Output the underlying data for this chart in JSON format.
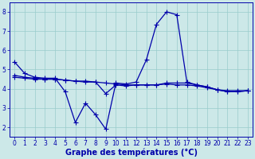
{
  "xlabel": "Graphe des températures (°C)",
  "background_color": "#cce8e8",
  "grid_color": "#99cccc",
  "line_color": "#0000aa",
  "xlim": [
    -0.5,
    23.5
  ],
  "ylim": [
    1.5,
    8.5
  ],
  "yticks": [
    2,
    3,
    4,
    5,
    6,
    7,
    8
  ],
  "xticks": [
    0,
    1,
    2,
    3,
    4,
    5,
    6,
    7,
    8,
    9,
    10,
    11,
    12,
    13,
    14,
    15,
    16,
    17,
    18,
    19,
    20,
    21,
    22,
    23
  ],
  "line1_x": [
    0,
    1,
    2,
    3,
    4,
    5,
    6,
    7,
    8,
    9,
    10,
    11,
    12,
    13,
    14,
    15,
    16,
    17,
    18,
    19,
    20,
    21,
    22,
    23
  ],
  "line1_y": [
    5.4,
    4.8,
    4.6,
    4.55,
    4.55,
    3.85,
    2.25,
    3.25,
    2.65,
    1.9,
    4.3,
    4.25,
    4.35,
    5.5,
    7.35,
    8.0,
    7.85,
    4.35,
    4.2,
    4.1,
    3.95,
    3.85,
    3.85,
    3.9
  ],
  "line2_x": [
    0,
    1,
    2,
    3,
    4,
    5,
    6,
    7,
    8,
    9,
    10,
    11,
    12,
    13,
    14,
    15,
    16,
    17,
    18,
    19,
    20,
    21,
    22,
    23
  ],
  "line2_y": [
    4.7,
    4.6,
    4.55,
    4.5,
    4.5,
    4.45,
    4.4,
    4.4,
    4.35,
    4.3,
    4.25,
    4.2,
    4.2,
    4.2,
    4.2,
    4.25,
    4.2,
    4.2,
    4.15,
    4.05,
    3.95,
    3.9,
    3.9,
    3.9
  ],
  "line3_x": [
    0,
    1,
    2,
    3,
    4,
    5,
    6,
    7,
    8,
    9,
    10,
    11,
    12,
    13,
    14,
    15,
    16,
    17,
    18,
    19,
    20,
    21,
    22,
    23
  ],
  "line3_y": [
    4.6,
    4.55,
    4.5,
    4.5,
    4.5,
    4.45,
    4.4,
    4.35,
    4.35,
    3.75,
    4.2,
    4.15,
    4.2,
    4.2,
    4.2,
    4.3,
    4.3,
    4.3,
    4.2,
    4.1,
    3.95,
    3.85,
    3.85,
    3.9
  ],
  "marker": "+",
  "markersize": 4,
  "linewidth": 0.9,
  "xlabel_fontsize": 7,
  "tick_fontsize": 5.5
}
